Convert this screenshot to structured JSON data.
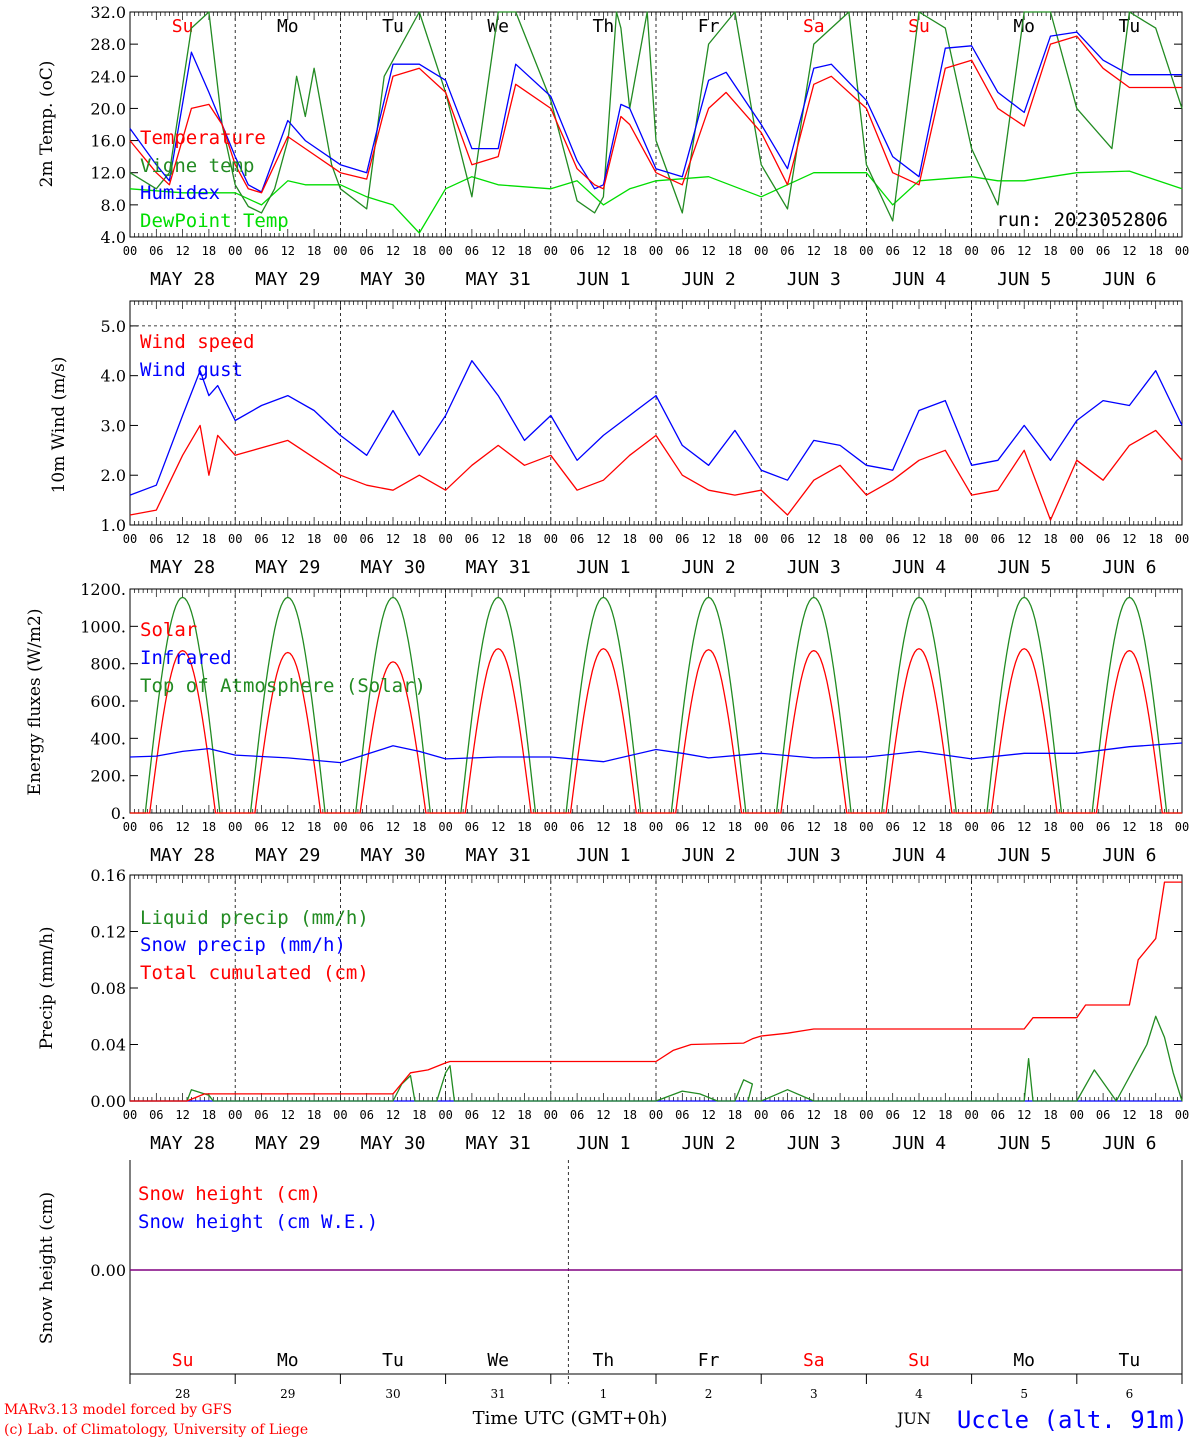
{
  "colors": {
    "red": "#ff0000",
    "green": "#228b22",
    "blue": "#0000ff",
    "lightgreen": "#00dd00",
    "purple": "#800080"
  },
  "hour_labels": [
    "00",
    "06",
    "12",
    "18"
  ],
  "date_labels": [
    "MAY 28",
    "MAY 29",
    "MAY 30",
    "MAY 31",
    "JUN  1",
    "JUN  2",
    "JUN  3",
    "JUN  4",
    "JUN  5",
    "JUN  6"
  ],
  "day_names": [
    "Su",
    "Mo",
    "Tu",
    "We",
    "Th",
    "Fr",
    "Sa",
    "Su",
    "Mo",
    "Tu"
  ],
  "day_colors": [
    "red",
    "black",
    "black",
    "black",
    "black",
    "black",
    "red",
    "red",
    "black",
    "black"
  ],
  "day_numbers": [
    "28",
    "29",
    "30",
    "31",
    "1",
    "2",
    "3",
    "4",
    "5",
    "6"
  ],
  "run_label": "run: 2023052806",
  "x_axis_title": "Time UTC (GMT+0h)",
  "month_label": "JUN",
  "station": "Uccle (alt. 91m)",
  "credit_line1": "MARv3.13 model forced by GFS",
  "credit_line2": "(c) Lab. of Climatology, University of Liege",
  "chart_data": [
    {
      "type": "line",
      "ylabel": "2m Temp. (oC)",
      "ylim": [
        4,
        32
      ],
      "yticks": [
        "4.0",
        "8.0",
        "12.0",
        "16.0",
        "20.0",
        "24.0",
        "28.0",
        "32.0"
      ],
      "x_unit": "hours since 2023-05-28 00 UTC",
      "series": [
        {
          "name": "Temperature",
          "color": "red",
          "x": [
            0,
            6,
            9,
            14,
            18,
            21,
            24,
            27,
            30,
            36,
            40,
            48,
            54,
            60,
            66,
            72,
            78,
            84,
            88,
            96,
            102,
            106,
            108,
            112,
            114,
            120,
            126,
            132,
            136,
            144,
            150,
            156,
            160,
            168,
            174,
            180,
            186,
            192,
            198,
            204,
            210,
            216,
            222,
            228,
            234,
            240
          ],
          "y": [
            16,
            12,
            10.5,
            20,
            20.5,
            18,
            13,
            10,
            9.5,
            16.5,
            15,
            12,
            11.2,
            24,
            25,
            22,
            13,
            14,
            23,
            20,
            12.5,
            10.5,
            10,
            19,
            18,
            12,
            10.5,
            20,
            22,
            17,
            10.5,
            23,
            24,
            20,
            12,
            10.5,
            25,
            26,
            20,
            17.8,
            28,
            29,
            25,
            22.6,
            22.6,
            22.6
          ]
        },
        {
          "name": "Humidex",
          "color": "blue",
          "x": [
            0,
            6,
            9,
            14,
            18,
            21,
            24,
            27,
            30,
            36,
            40,
            48,
            54,
            60,
            66,
            72,
            78,
            84,
            88,
            96,
            102,
            106,
            108,
            112,
            114,
            120,
            126,
            132,
            136,
            144,
            150,
            156,
            160,
            168,
            174,
            180,
            186,
            192,
            198,
            204,
            210,
            216,
            222,
            228,
            234,
            240
          ],
          "y": [
            17.5,
            13,
            11,
            27,
            22,
            18,
            14,
            10.5,
            9.6,
            18.5,
            16,
            13,
            12,
            25.5,
            25.5,
            23.5,
            15,
            15,
            25.5,
            21.5,
            13.5,
            10,
            10.5,
            20.5,
            20,
            12.5,
            11.5,
            23.5,
            24.5,
            18,
            12.5,
            25,
            25.5,
            21,
            14,
            11.5,
            27.5,
            27.8,
            22,
            19.5,
            29,
            29.5,
            26,
            24.2,
            24.2,
            24.2
          ]
        },
        {
          "name": "Vigne temp",
          "color": "green",
          "x": [
            0,
            6,
            9,
            14,
            18,
            21,
            24,
            27,
            30,
            33,
            36,
            38,
            40,
            42,
            46,
            48,
            54,
            58,
            66,
            72,
            78,
            84,
            88,
            96,
            102,
            106,
            108,
            111,
            112,
            114,
            118,
            120,
            126,
            132,
            138,
            144,
            150,
            156,
            164,
            168,
            174,
            180,
            186,
            192,
            198,
            204,
            210,
            216,
            224,
            228,
            234,
            240
          ],
          "y": [
            12,
            10,
            12,
            30,
            32,
            18,
            10.5,
            7.8,
            7,
            10,
            16,
            24,
            19,
            25,
            13,
            10,
            7.5,
            24,
            32,
            22,
            9,
            32,
            32,
            21,
            8.5,
            7,
            9,
            32,
            30,
            20,
            32,
            16,
            7,
            28,
            32,
            13,
            7.5,
            28,
            32,
            13,
            6,
            32,
            30,
            15,
            8,
            32,
            32,
            20,
            15,
            32,
            30,
            20
          ]
        },
        {
          "name": "DewPoint Temp",
          "color": "lightgreen",
          "x": [
            0,
            12,
            24,
            30,
            36,
            40,
            48,
            54,
            60,
            66,
            72,
            78,
            84,
            96,
            102,
            108,
            114,
            120,
            132,
            144,
            156,
            168,
            174,
            180,
            192,
            198,
            204,
            216,
            228,
            240
          ],
          "y": [
            10,
            9.5,
            9.5,
            8,
            11,
            10.5,
            10.5,
            9,
            8,
            4.5,
            10,
            11.5,
            10.5,
            10,
            11,
            8,
            10,
            11,
            11.5,
            9,
            12,
            12,
            8,
            11,
            11.5,
            11,
            11,
            12,
            12.2,
            10
          ]
        }
      ]
    },
    {
      "type": "line",
      "ylabel": "10m Wind (m/s)",
      "ylim": [
        1,
        5.5
      ],
      "yticks": [
        "1.0",
        "2.0",
        "3.0",
        "4.0",
        "5.0"
      ],
      "x_unit": "hours since 2023-05-28 00 UTC",
      "series": [
        {
          "name": "Wind speed",
          "color": "red",
          "x": [
            0,
            6,
            12,
            16,
            18,
            20,
            24,
            36,
            48,
            54,
            60,
            66,
            72,
            78,
            84,
            90,
            96,
            102,
            108,
            114,
            120,
            126,
            132,
            138,
            144,
            150,
            156,
            162,
            168,
            174,
            180,
            186,
            192,
            198,
            204,
            210,
            216,
            222,
            228,
            234,
            240
          ],
          "y": [
            1.2,
            1.3,
            2.4,
            3,
            2,
            2.8,
            2.4,
            2.7,
            2,
            1.8,
            1.7,
            2,
            1.7,
            2.2,
            2.6,
            2.2,
            2.4,
            1.7,
            1.9,
            2.4,
            2.8,
            2,
            1.7,
            1.6,
            1.7,
            1.2,
            1.9,
            2.2,
            1.6,
            1.9,
            2.3,
            2.5,
            1.6,
            1.7,
            2.5,
            1.1,
            2.3,
            1.9,
            2.6,
            2.9,
            2.3
          ]
        },
        {
          "name": "Wind gust",
          "color": "blue",
          "x": [
            0,
            6,
            12,
            16,
            18,
            20,
            24,
            30,
            36,
            42,
            48,
            54,
            60,
            66,
            72,
            78,
            84,
            90,
            96,
            102,
            108,
            114,
            120,
            126,
            132,
            138,
            144,
            150,
            156,
            162,
            168,
            174,
            180,
            186,
            192,
            198,
            204,
            210,
            216,
            222,
            228,
            234,
            240
          ],
          "y": [
            1.6,
            1.8,
            3.2,
            4.1,
            3.6,
            3.8,
            3.1,
            3.4,
            3.6,
            3.3,
            2.8,
            2.4,
            3.3,
            2.4,
            3.2,
            4.3,
            3.6,
            2.7,
            3.2,
            2.3,
            2.8,
            3.2,
            3.6,
            2.6,
            2.2,
            2.9,
            2.1,
            1.9,
            2.7,
            2.6,
            2.2,
            2.1,
            3.3,
            3.5,
            2.2,
            2.3,
            3,
            2.3,
            3.1,
            3.5,
            3.4,
            4.1,
            3
          ]
        }
      ]
    },
    {
      "type": "line",
      "ylabel": "Energy fluxes (W/m2)",
      "ylim": [
        0,
        1200
      ],
      "yticks": [
        "0.",
        "200.",
        "400.",
        "600.",
        "800.",
        "1000.",
        "1200."
      ],
      "x_unit": "hours since 2023-05-28 00 UTC",
      "daily_peaks": {
        "solar": [
          870,
          860,
          810,
          880,
          880,
          875,
          870,
          880,
          880,
          870
        ],
        "top_of_atmosphere_solar": [
          1155,
          1155,
          1155,
          1155,
          1155,
          1155,
          1155,
          1155,
          1155,
          1155
        ]
      },
      "series": [
        {
          "name": "Solar",
          "color": "red"
        },
        {
          "name": "Infrared",
          "color": "blue",
          "x": [
            0,
            6,
            12,
            18,
            24,
            36,
            48,
            60,
            66,
            72,
            84,
            96,
            108,
            120,
            126,
            132,
            144,
            156,
            168,
            180,
            192,
            204,
            216,
            228,
            240
          ],
          "y": [
            300,
            305,
            330,
            345,
            310,
            295,
            270,
            360,
            330,
            290,
            300,
            300,
            275,
            340,
            320,
            295,
            320,
            295,
            300,
            330,
            290,
            320,
            320,
            355,
            375
          ]
        },
        {
          "name": "Top of Atmosphere (Solar)",
          "color": "green"
        }
      ]
    },
    {
      "type": "line",
      "ylabel": "Precip (mm/h)",
      "ylim": [
        0,
        0.16
      ],
      "yticks": [
        "0.00",
        "0.04",
        "0.08",
        "0.12",
        "0.16"
      ],
      "x_unit": "hours since 2023-05-28 00 UTC",
      "series": [
        {
          "name": "Liquid precip (mm/h)",
          "color": "green",
          "x": [
            0,
            13,
            14,
            16,
            18,
            19,
            24,
            60,
            62,
            64,
            65,
            70,
            72,
            73,
            74,
            120,
            126,
            130,
            134,
            138,
            140,
            142,
            141,
            143,
            144,
            150,
            156,
            204,
            205,
            206,
            216,
            220,
            225,
            232,
            234,
            236,
            238,
            240
          ],
          "y": [
            0,
            0,
            0.008,
            0.006,
            0.004,
            0,
            0,
            0,
            0.012,
            0.018,
            0,
            0,
            0.02,
            0.025,
            0,
            0,
            0.007,
            0.005,
            0,
            0,
            0.015,
            0.012,
            0,
            0,
            0,
            0.008,
            0,
            0,
            0.03,
            0,
            0,
            0.022,
            0,
            0.04,
            0.06,
            0.045,
            0.02,
            0
          ]
        },
        {
          "name": "Snow precip (mm/h)",
          "color": "blue",
          "x": [
            0,
            240
          ],
          "y": [
            0,
            0
          ]
        },
        {
          "name": "Total cumulated (cm)",
          "color": "red",
          "x": [
            0,
            13,
            17,
            60,
            64,
            68,
            72,
            73,
            80,
            120,
            124,
            128,
            140,
            142,
            144,
            150,
            154,
            156,
            204,
            206,
            216,
            218,
            228,
            230,
            234,
            236,
            240
          ],
          "y": [
            0,
            0,
            0.005,
            0.005,
            0.02,
            0.022,
            0.027,
            0.028,
            0.028,
            0.028,
            0.036,
            0.04,
            0.041,
            0.044,
            0.046,
            0.048,
            0.05,
            0.051,
            0.051,
            0.059,
            0.059,
            0.068,
            0.068,
            0.1,
            0.115,
            0.155,
            0.155
          ]
        }
      ]
    },
    {
      "type": "line",
      "ylabel": "Snow height (cm)",
      "yticks": [
        "0.00"
      ],
      "series": [
        {
          "name": "Snow height (cm)",
          "color": "red",
          "x": [
            0,
            240
          ],
          "y": [
            0,
            0
          ]
        },
        {
          "name": "Snow height (cm W.E.)",
          "color": "blue",
          "x": [
            0,
            240
          ],
          "y": [
            0,
            0
          ]
        }
      ]
    }
  ]
}
